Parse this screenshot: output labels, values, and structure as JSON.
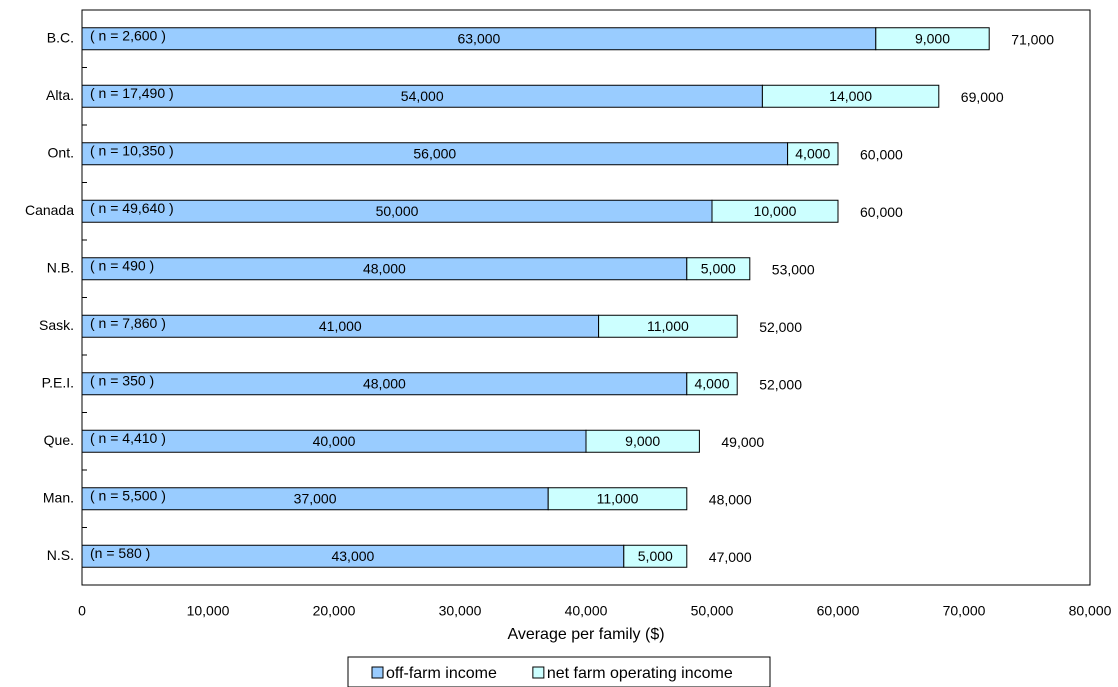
{
  "chart_data": {
    "type": "bar",
    "orientation": "horizontal",
    "stacked": true,
    "categories": [
      "B.C.",
      "Alta.",
      "Ont.",
      "Canada",
      "N.B.",
      "Sask.",
      "P.E.I.",
      "Que.",
      "Man.",
      "N.S."
    ],
    "annotations": [
      "( n = 2,600 )",
      "( n = 17,490 )",
      "( n = 10,350 )",
      "( n = 49,640 )",
      "( n = 490 )",
      "( n = 7,860 )",
      "( n = 350 )",
      "( n = 4,410 )",
      "( n = 5,500 )",
      "(n = 580 )"
    ],
    "series": [
      {
        "name": "off-farm income",
        "color": "#99ccff",
        "values": [
          63000,
          54000,
          56000,
          50000,
          48000,
          41000,
          48000,
          40000,
          37000,
          43000
        ],
        "value_labels": [
          "63,000",
          "54,000",
          "56,000",
          "50,000",
          "48,000",
          "41,000",
          "48,000",
          "40,000",
          "37,000",
          "43,000"
        ]
      },
      {
        "name": "net farm operating income",
        "color": "#ccffff",
        "values": [
          9000,
          14000,
          4000,
          10000,
          5000,
          11000,
          4000,
          9000,
          11000,
          5000
        ],
        "value_labels": [
          "9,000",
          "14,000",
          "4,000",
          "10,000",
          "5,000",
          "11,000",
          "4,000",
          "9,000",
          "11,000",
          "5,000"
        ]
      }
    ],
    "totals": {
      "values": [
        71000,
        69000,
        60000,
        60000,
        53000,
        52000,
        52000,
        49000,
        48000,
        47000
      ],
      "value_labels": [
        "71,000",
        "69,000",
        "60,000",
        "60,000",
        "53,000",
        "52,000",
        "52,000",
        "49,000",
        "48,000",
        "47,000"
      ]
    },
    "xlabel": "Average per family ($)",
    "xlim": [
      0,
      80000
    ],
    "xticks": [
      0,
      {
        "value": 10000,
        "label": "10,000"
      },
      {
        "value": 20000,
        "label": "20,000"
      },
      {
        "value": 30000,
        "label": "30,000"
      },
      {
        "value": 40000,
        "label": "40,000"
      },
      {
        "value": 50000,
        "label": "50,000"
      },
      {
        "value": 60000,
        "label": "60,000"
      },
      {
        "value": 70000,
        "label": "70,000"
      },
      {
        "value": 80000,
        "label": "80,000"
      }
    ],
    "legend": "bottom"
  }
}
